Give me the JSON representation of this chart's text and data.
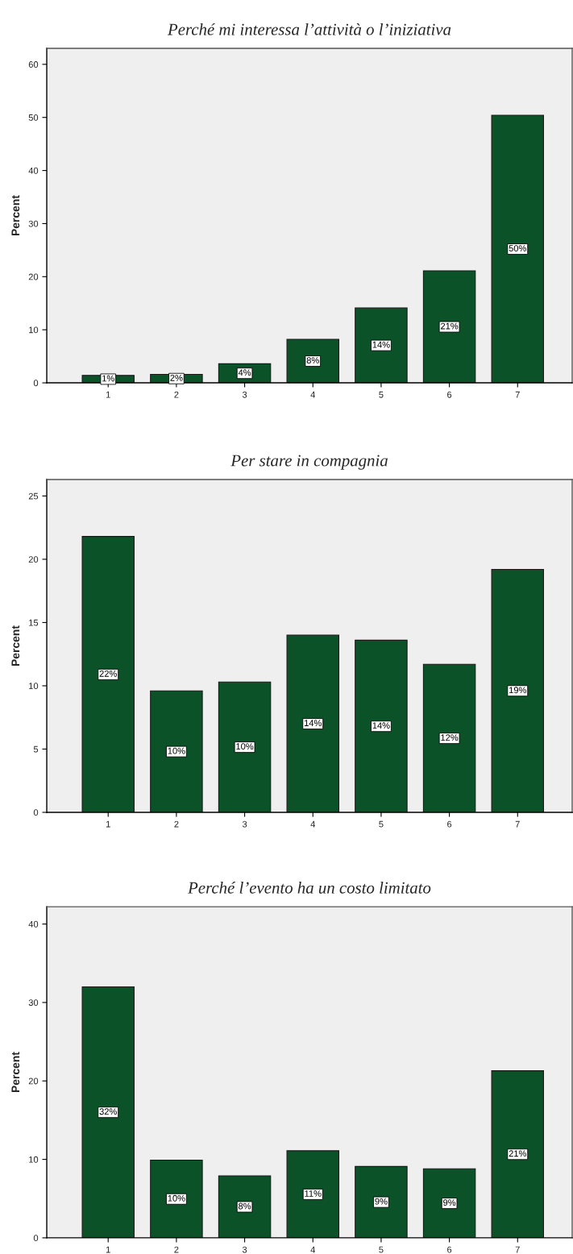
{
  "chart_data": [
    {
      "type": "bar",
      "title": "Perché mi interessa l’attività o l’iniziativa",
      "ylabel": "Percent",
      "categories": [
        "1",
        "2",
        "3",
        "4",
        "5",
        "6",
        "7"
      ],
      "values": [
        1.4,
        1.6,
        3.6,
        8.2,
        14.1,
        21.1,
        50.4
      ],
      "value_labels": [
        "1%",
        "2%",
        "4%",
        "8%",
        "14%",
        "21%",
        "50%"
      ],
      "color": "#0b5229",
      "ylim": [
        0,
        63
      ],
      "yticks": [
        0,
        10,
        20,
        30,
        40,
        50,
        60
      ],
      "grid": false
    },
    {
      "type": "bar",
      "title": "Per stare in compagnia",
      "ylabel": "Percent",
      "categories": [
        "1",
        "2",
        "3",
        "4",
        "5",
        "6",
        "7"
      ],
      "values": [
        21.8,
        9.6,
        10.3,
        14.0,
        13.6,
        11.7,
        19.2
      ],
      "value_labels": [
        "22%",
        "10%",
        "10%",
        "14%",
        "14%",
        "12%",
        "19%"
      ],
      "color": "#0b5229",
      "ylim": [
        0,
        26.3
      ],
      "yticks": [
        0,
        5,
        10,
        15,
        20,
        25
      ],
      "grid": false
    },
    {
      "type": "bar",
      "title": "Perché l’evento ha un costo limitato",
      "ylabel": "Percent",
      "categories": [
        "1",
        "2",
        "3",
        "4",
        "5",
        "6",
        "7"
      ],
      "values": [
        32.0,
        9.9,
        7.9,
        11.1,
        9.1,
        8.8,
        21.3
      ],
      "value_labels": [
        "32%",
        "10%",
        "8%",
        "11%",
        "9%",
        "9%",
        "21%"
      ],
      "color": "#0b5229",
      "ylim": [
        0,
        42.2
      ],
      "yticks": [
        0,
        10,
        20,
        30,
        40
      ],
      "grid": false
    }
  ]
}
